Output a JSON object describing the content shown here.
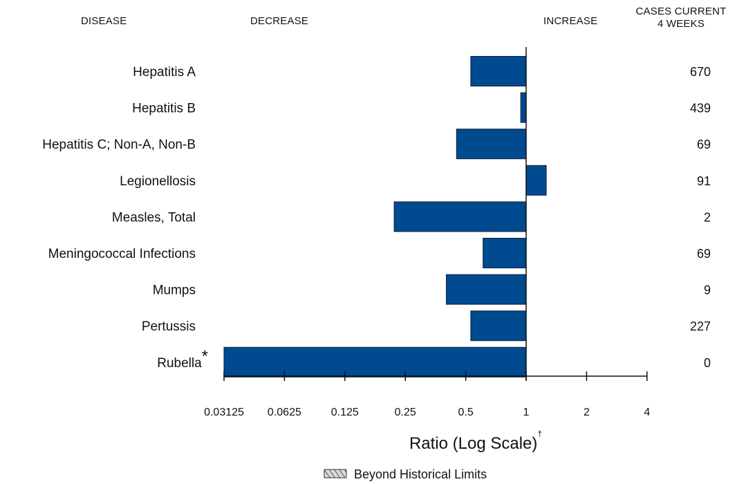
{
  "headers": {
    "disease": "DISEASE",
    "decrease": "DECREASE",
    "increase": "INCREASE",
    "cases_line1": "CASES CURRENT",
    "cases_line2": "4 WEEKS"
  },
  "legend": {
    "label": "Beyond Historical Limits"
  },
  "colors": {
    "bar": "#004a8f",
    "bar_stroke": "#0a1f3d",
    "axis": "#111111"
  },
  "chart_data": {
    "type": "bar",
    "orientation": "horizontal",
    "categories": [
      "Hepatitis A",
      "Hepatitis B",
      "Hepatitis C; Non-A, Non-B",
      "Legionellosis",
      "Measles, Total",
      "Meningococcal Infections",
      "Mumps",
      "Pertussis",
      "Rubella"
    ],
    "category_notes": [
      "",
      "",
      "",
      "",
      "",
      "",
      "",
      "",
      "*"
    ],
    "series": [
      {
        "values": [
          0.53,
          0.94,
          0.45,
          1.26,
          0.22,
          0.61,
          0.4,
          0.53,
          0.03125
        ]
      }
    ],
    "cases_current_4_weeks": [
      "670",
      "439",
      "69",
      "91",
      "2",
      "69",
      "9",
      "227",
      "0"
    ],
    "xlabel": "Ratio (Log Scale)",
    "xlabel_note": "†",
    "xscale": "log2",
    "xlim": [
      0.03125,
      4
    ],
    "reference_value": 1,
    "ticks": [
      0.03125,
      0.0625,
      0.125,
      0.25,
      0.5,
      1,
      2,
      4
    ],
    "tick_labels": [
      "0.03125",
      "0.0625",
      "0.125",
      "0.25",
      "0.5",
      "1",
      "2",
      "4"
    ],
    "beyond_historical_limits": [
      false,
      false,
      false,
      false,
      false,
      false,
      false,
      false,
      false
    ],
    "grid": false,
    "legend_position": "bottom-center"
  }
}
